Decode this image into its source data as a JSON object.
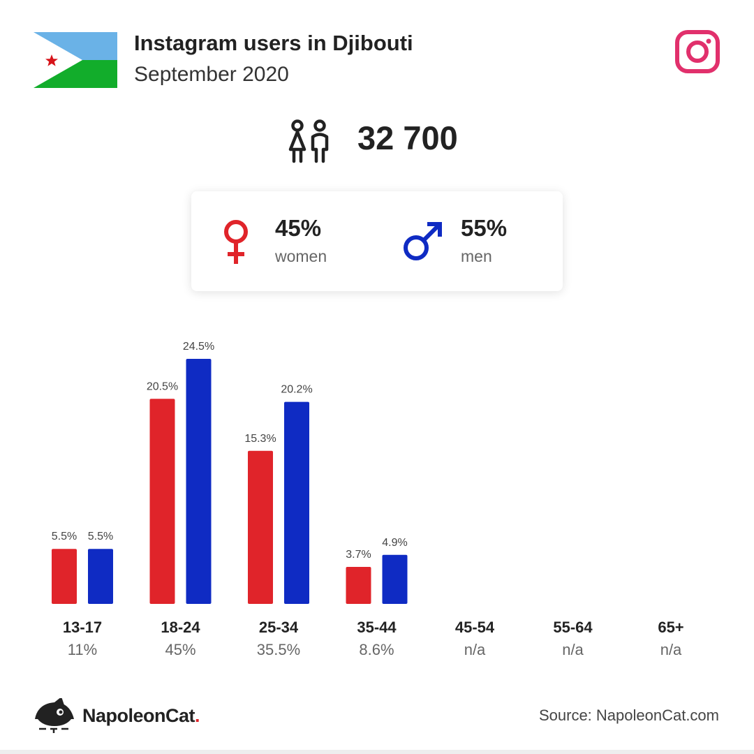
{
  "header": {
    "title": "Instagram users in Djibouti",
    "subtitle": "September 2020",
    "flag_icon": "djibouti-flag-icon",
    "platform_icon": "instagram-icon"
  },
  "total": {
    "icon": "users-icon",
    "value": "32 700"
  },
  "gender": {
    "women": {
      "pct": "45%",
      "label": "women",
      "icon": "female-symbol-icon"
    },
    "men": {
      "pct": "55%",
      "label": "men",
      "icon": "male-symbol-icon"
    }
  },
  "colors": {
    "women": "#e0242a",
    "men": "#0f2bc3",
    "instagram": "#e1306c",
    "flag_blue": "#6ab2e7",
    "flag_green": "#12ad2b",
    "flag_star": "#d7141a"
  },
  "chart_data": {
    "type": "bar",
    "categories": [
      "13-17",
      "18-24",
      "25-34",
      "35-44",
      "45-54",
      "55-64",
      "65+"
    ],
    "category_totals": [
      "11%",
      "45%",
      "35.5%",
      "8.6%",
      "n/a",
      "n/a",
      "n/a"
    ],
    "series": [
      {
        "values": [
          5.5,
          20.5,
          15.3,
          3.7,
          null,
          null,
          null
        ],
        "labels": [
          "5.5%",
          "20.5%",
          "15.3%",
          "3.7%",
          "",
          "",
          ""
        ]
      },
      {
        "values": [
          5.5,
          24.5,
          20.2,
          4.9,
          null,
          null,
          null
        ],
        "labels": [
          "5.5%",
          "24.5%",
          "20.2%",
          "4.9%",
          "",
          "",
          ""
        ]
      }
    ],
    "ylim": [
      0,
      25
    ],
    "grid": false
  },
  "footer": {
    "brand": "NapoleonCat",
    "brand_dot": ".",
    "logo_icon": "napoleoncat-logo-icon",
    "source": "Source: NapoleonCat.com"
  }
}
